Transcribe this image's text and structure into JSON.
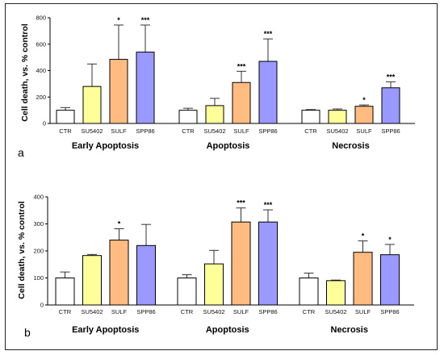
{
  "chart_data": [
    {
      "type": "bar",
      "panel_label": "a",
      "ylabel": "Cell death, vs. % control",
      "ylim": [
        0,
        800
      ],
      "yticks": [
        0,
        200,
        400,
        600,
        800
      ],
      "bar_labels": [
        "CTR",
        "SU5402",
        "SULF",
        "SPP86"
      ],
      "groups": [
        "Early Apoptosis",
        "Apoptosis",
        "Necrosis"
      ],
      "colors": [
        "#ffffff",
        "#ffff99",
        "#ffbb80",
        "#9999ff"
      ],
      "series": [
        {
          "group": "Early Apoptosis",
          "values": [
            100,
            280,
            485,
            540
          ],
          "errors": [
            20,
            170,
            260,
            205
          ],
          "significance": [
            "",
            "",
            "*",
            "***"
          ]
        },
        {
          "group": "Apoptosis",
          "values": [
            100,
            135,
            310,
            470
          ],
          "errors": [
            15,
            55,
            85,
            170
          ],
          "significance": [
            "",
            "",
            "***",
            "***"
          ]
        },
        {
          "group": "Necrosis",
          "values": [
            100,
            100,
            130,
            270
          ],
          "errors": [
            5,
            10,
            10,
            45
          ],
          "significance": [
            "",
            "",
            "*",
            "***"
          ]
        }
      ]
    },
    {
      "type": "bar",
      "panel_label": "b",
      "ylabel": "Cell death, vs. % control",
      "ylim": [
        0,
        400
      ],
      "yticks": [
        0,
        100,
        200,
        300,
        400
      ],
      "bar_labels": [
        "CTR",
        "SU5402",
        "SULF",
        "SPP86"
      ],
      "groups": [
        "Early Apoptosis",
        "Apoptosis",
        "Necrosis"
      ],
      "colors": [
        "#ffffff",
        "#ffff99",
        "#ffbb80",
        "#9999ff"
      ],
      "series": [
        {
          "group": "Early Apoptosis",
          "values": [
            100,
            183,
            240,
            220
          ],
          "errors": [
            22,
            4,
            42,
            78
          ],
          "significance": [
            "",
            "",
            "*",
            ""
          ]
        },
        {
          "group": "Apoptosis",
          "values": [
            100,
            152,
            307,
            307
          ],
          "errors": [
            12,
            50,
            52,
            45
          ],
          "significance": [
            "",
            "",
            "***",
            "***"
          ]
        },
        {
          "group": "Necrosis",
          "values": [
            100,
            90,
            195,
            186
          ],
          "errors": [
            18,
            2,
            42,
            38
          ],
          "significance": [
            "",
            "",
            "*",
            "*"
          ]
        }
      ]
    }
  ]
}
